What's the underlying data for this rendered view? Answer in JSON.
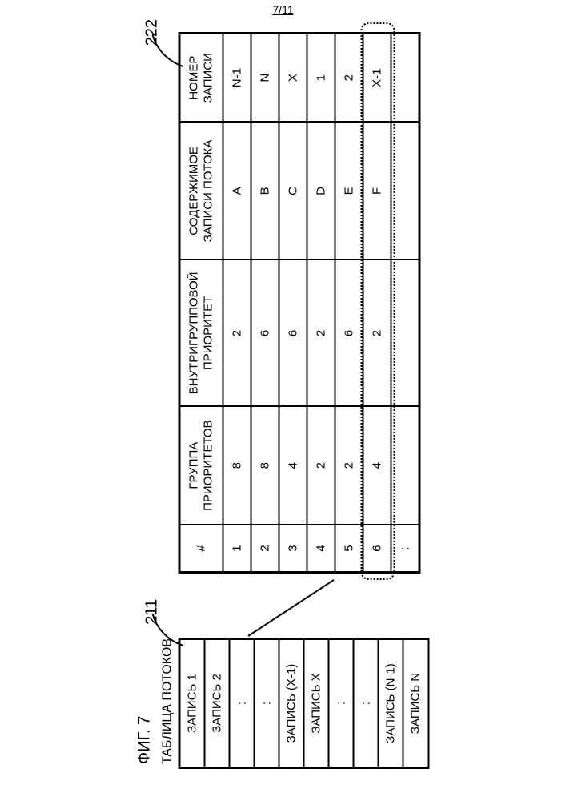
{
  "page": {
    "pager": "7/11",
    "fig_label": "ФИГ. 7",
    "flow_title": "ТАБЛИЦА ПОТОКОВ"
  },
  "callouts": {
    "left_ref": "211",
    "right_ref": "222"
  },
  "flow_table": {
    "rows": [
      "ЗАПИСЬ 1",
      "ЗАПИСЬ 2",
      ":",
      ":",
      "ЗАПИСЬ (X-1)",
      "ЗАПИСЬ X",
      ":",
      ":",
      "ЗАПИСЬ (N-1)",
      "ЗАПИСЬ N"
    ]
  },
  "big_table": {
    "headers": {
      "idx": "#",
      "group": "ГРУППА\nПРИОРИТЕТОВ",
      "intra": "ВНУТРИГРУППОВОЙ\nПРИОРИТЕТ",
      "content": "СОДЕРЖИМОЕ\nЗАПИСИ ПОТОКА",
      "recno": "НОМЕР\nЗАПИСИ"
    },
    "rows": [
      {
        "idx": "1",
        "group": "8",
        "intra": "2",
        "content": "A",
        "recno": "N-1"
      },
      {
        "idx": "2",
        "group": "8",
        "intra": "6",
        "content": "B",
        "recno": "N"
      },
      {
        "idx": "3",
        "group": "4",
        "intra": "6",
        "content": "C",
        "recno": "X"
      },
      {
        "idx": "4",
        "group": "2",
        "intra": "2",
        "content": "D",
        "recno": "1"
      },
      {
        "idx": "5",
        "group": "2",
        "intra": "6",
        "content": "E",
        "recno": "2"
      },
      {
        "idx": "6",
        "group": "4",
        "intra": "2",
        "content": "F",
        "recno": "X-1"
      },
      {
        "idx": ":",
        "group": "",
        "intra": "",
        "content": "",
        "recno": ""
      }
    ],
    "highlight_row_index": 5
  },
  "style": {
    "background_color": "#ffffff",
    "border_color": "#000000",
    "font_family": "Arial",
    "header_fontsize_pt": 11,
    "cell_fontsize_pt": 11,
    "fig_label_fontsize_pt": 15,
    "callout_fontsize_pt": 15,
    "dotted_dash": "2,4"
  }
}
